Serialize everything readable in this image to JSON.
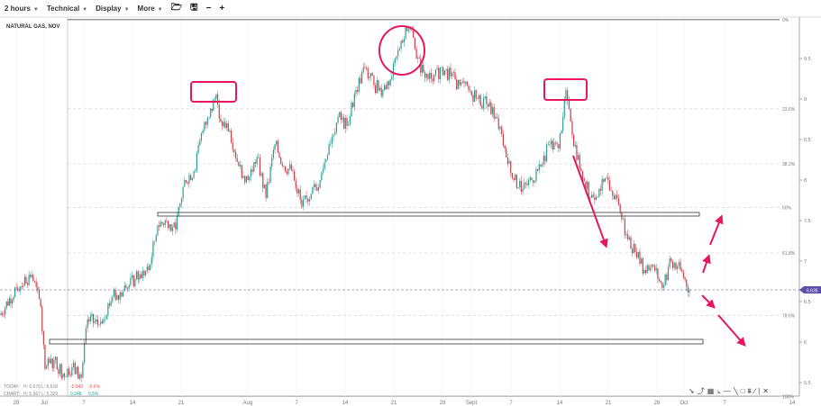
{
  "toolbar": {
    "interval": "2 hours",
    "technical": "Technical",
    "display": "Display",
    "more": "More",
    "icons": [
      "folder-open-icon",
      "save-icon",
      "zoom-out-icon",
      "zoom-in-icon"
    ]
  },
  "symbol": "NATURAL GAS, NOV",
  "stats": {
    "today_label": "TODAY:",
    "today_high": "H: 6.679",
    "today_low": "L: 6.618",
    "today_change": "-0.042",
    "today_change_pct": "-0.6%",
    "chart_label": "CHART:",
    "chart_high": "H: 5.967",
    "chart_low": "L: 5.329",
    "chart_change": "0.348",
    "chart_change_pct": "5.5%"
  },
  "colors": {
    "up": "#2a9d8f",
    "down": "#c9404a",
    "annotation": "#e8175d",
    "price_tag": "#5b4ea6"
  },
  "chart_data": {
    "type": "candlestick-line",
    "x_axis": {
      "labels": [
        "28",
        "Jul",
        "7",
        "14",
        "21",
        "Aug",
        "7",
        "14",
        "21",
        "28",
        "Sept",
        "7",
        "14",
        "21",
        "28",
        "Oct",
        "7",
        "14"
      ]
    },
    "y_axis": {
      "labels": [
        "9.5",
        "9",
        "8.5",
        "8",
        "7.5",
        "7",
        "6.5",
        "6",
        "5.5"
      ],
      "range": [
        5.3,
        10.0
      ]
    },
    "current_price": "6.635",
    "fibonacci": [
      {
        "label": "0%",
        "value": 9.98
      },
      {
        "label": "23.6%",
        "value": 8.88
      },
      {
        "label": "38.2%",
        "value": 8.2
      },
      {
        "label": "50%",
        "value": 7.66
      },
      {
        "label": "61.8%",
        "value": 7.1
      },
      {
        "label": "78.6%",
        "value": 6.33
      },
      {
        "label": "100%",
        "value": 5.33
      }
    ],
    "series": [
      [
        "06-24 14:00",
        6.33
      ],
      [
        "06-27 00:00",
        6.67
      ],
      [
        "06-29 05:00",
        6.83
      ],
      [
        "06-30 12:00",
        6.44
      ],
      [
        "07-01 03:00",
        5.67
      ],
      [
        "07-02 10:00",
        5.78
      ],
      [
        "07-03 17:00",
        5.61
      ],
      [
        "07-05 00:00",
        5.69
      ],
      [
        "07-06 08:00",
        5.56
      ],
      [
        "07-07 06:00",
        6.28
      ],
      [
        "07-08 22:00",
        6.22
      ],
      [
        "07-10 20:00",
        6.56
      ],
      [
        "07-12 19:00",
        6.67
      ],
      [
        "07-14 02:00",
        6.78
      ],
      [
        "07-16 01:00",
        6.89
      ],
      [
        "07-17 08:00",
        7.44
      ],
      [
        "07-18 15:00",
        7.5
      ],
      [
        "07-19 22:00",
        7.39
      ],
      [
        "07-21 05:00",
        8.0
      ],
      [
        "07-22 13:00",
        8.11
      ],
      [
        "07-23 20:00",
        8.61
      ],
      [
        "07-24 18:00",
        8.78
      ],
      [
        "07-25 18:00",
        9.06
      ],
      [
        "07-26 10:00",
        8.72
      ],
      [
        "07-27 17:00",
        8.61
      ],
      [
        "07-29 00:00",
        8.17
      ],
      [
        "07-30 08:00",
        8.0
      ],
      [
        "07-31 15:00",
        8.28
      ],
      [
        "08-01 22:00",
        7.78
      ],
      [
        "08-03 05:00",
        8.44
      ],
      [
        "08-04 12:00",
        8.17
      ],
      [
        "08-05 19:00",
        8.11
      ],
      [
        "08-07 02:00",
        7.67
      ],
      [
        "08-08 10:00",
        7.83
      ],
      [
        "08-09 17:00",
        8.0
      ],
      [
        "08-11 00:00",
        8.44
      ],
      [
        "08-12 07:00",
        8.78
      ],
      [
        "08-13 14:00",
        8.67
      ],
      [
        "08-14 21:00",
        9.11
      ],
      [
        "08-16 04:00",
        9.39
      ],
      [
        "08-17 11:00",
        9.17
      ],
      [
        "08-18 18:00",
        9.11
      ],
      [
        "08-20 01:00",
        9.28
      ],
      [
        "08-21 09:00",
        9.72
      ],
      [
        "08-22 16:00",
        9.89
      ],
      [
        "08-23 14:00",
        9.5
      ],
      [
        "08-24 14:00",
        9.33
      ],
      [
        "08-25 22:00",
        9.22
      ],
      [
        "08-27 05:00",
        9.39
      ],
      [
        "08-28 12:00",
        9.28
      ],
      [
        "08-29 19:00",
        9.17
      ],
      [
        "08-31 02:00",
        9.11
      ],
      [
        "09-01 09:00",
        9.0
      ],
      [
        "09-02 16:00",
        8.94
      ],
      [
        "09-03 23:00",
        8.78
      ],
      [
        "09-05 07:00",
        8.39
      ],
      [
        "09-06 14:00",
        8.0
      ],
      [
        "09-07 21:00",
        7.89
      ],
      [
        "09-09 04:00",
        8.0
      ],
      [
        "09-10 11:00",
        8.17
      ],
      [
        "09-11 18:00",
        8.44
      ],
      [
        "09-13 01:00",
        8.39
      ],
      [
        "09-14 02:00",
        9.11
      ],
      [
        "09-15 00:00",
        8.56
      ],
      [
        "09-16 07:00",
        8.11
      ],
      [
        "09-17 14:00",
        7.78
      ],
      [
        "09-18 21:00",
        7.89
      ],
      [
        "09-20 04:00",
        8.0
      ],
      [
        "09-21 11:00",
        7.78
      ],
      [
        "09-22 19:00",
        7.33
      ],
      [
        "09-24 02:00",
        7.11
      ],
      [
        "09-25 09:00",
        6.89
      ],
      [
        "09-26 16:00",
        6.94
      ],
      [
        "09-27 23:00",
        6.67
      ],
      [
        "09-29 06:00",
        7.0
      ],
      [
        "09-30 14:00",
        6.89
      ],
      [
        "10-01 21:00",
        6.64
      ]
    ]
  }
}
